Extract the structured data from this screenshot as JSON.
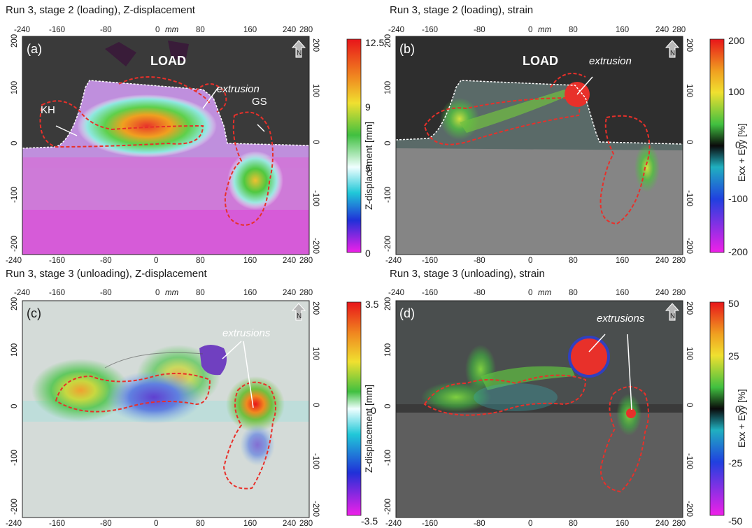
{
  "panels": [
    {
      "id": "a",
      "title": "Run 3, stage 2 (loading), Z-displacement",
      "letter": "(a)",
      "x_ticks_top": [
        "-240",
        "-160",
        "-80",
        "0",
        "mm",
        "80",
        "160",
        "240",
        "280"
      ],
      "x_ticks_bottom": [
        "-240",
        "-160",
        "-80",
        "0",
        "80",
        "160",
        "240",
        "280"
      ],
      "y_ticks_left": [
        "200",
        "100",
        "0",
        "-100",
        "-200"
      ],
      "y_ticks_right": [
        "200",
        "100",
        "0",
        "-100",
        "-200"
      ],
      "annotations": [
        "LOAD",
        "extrusion",
        "KH",
        "GS"
      ],
      "north": "N",
      "colorbar": {
        "ticks": [
          "12.5",
          "9",
          "5",
          "0"
        ],
        "label": "Z-displacement [mm]"
      }
    },
    {
      "id": "b",
      "title": "Run 3, stage 2 (loading), strain",
      "letter": "(b)",
      "x_ticks_top": [
        "-240",
        "-160",
        "-80",
        "0",
        "mm",
        "80",
        "160",
        "240",
        "280"
      ],
      "x_ticks_bottom": [
        "-240",
        "-160",
        "-80",
        "0",
        "80",
        "160",
        "240",
        "280"
      ],
      "y_ticks_left": [
        "200",
        "100",
        "0",
        "-100",
        "-200"
      ],
      "y_ticks_right": [
        "200",
        "100",
        "0",
        "-100",
        "-200"
      ],
      "annotations": [
        "LOAD",
        "extrusion"
      ],
      "north": "N",
      "colorbar": {
        "ticks": [
          "200",
          "100",
          "0",
          "-100",
          "-200"
        ],
        "label": "Exx + Eyy [%]"
      }
    },
    {
      "id": "c",
      "title": "Run 3, stage 3 (unloading), Z-displacement",
      "letter": "(c)",
      "x_ticks_top": [
        "-240",
        "-160",
        "-80",
        "0",
        "mm",
        "80",
        "160",
        "240",
        "280"
      ],
      "x_ticks_bottom": [
        "-240",
        "-160",
        "-80",
        "0",
        "80",
        "160",
        "240",
        "280"
      ],
      "y_ticks_left": [
        "200",
        "100",
        "0",
        "-100",
        "-200"
      ],
      "y_ticks_right": [
        "200",
        "100",
        "0",
        "-100",
        "-200"
      ],
      "annotations": [
        "extrusions"
      ],
      "north": "N",
      "colorbar": {
        "ticks": [
          "3.5",
          "0",
          "-3.5"
        ],
        "label": "Z-displacement [mm]"
      }
    },
    {
      "id": "d",
      "title": "Run 3, stage 3 (unloading), strain",
      "letter": "(d)",
      "x_ticks_top": [
        "-240",
        "-160",
        "-80",
        "0",
        "mm",
        "80",
        "160",
        "240",
        "280"
      ],
      "x_ticks_bottom": [
        "-240",
        "-160",
        "-80",
        "0",
        "80",
        "160",
        "240",
        "280"
      ],
      "y_ticks_left": [
        "200",
        "100",
        "0",
        "-100",
        "-200"
      ],
      "y_ticks_right": [
        "200",
        "100",
        "0",
        "-100",
        "-200"
      ],
      "annotations": [
        "extrusions"
      ],
      "north": "N",
      "colorbar": {
        "ticks": [
          "50",
          "25",
          "0",
          "-25",
          "-50"
        ],
        "label": "Exx + Eyy [%]"
      }
    }
  ],
  "colors": {
    "dashed_outline": "#e8302a",
    "load_surface_line": "#ffffff",
    "background_dark": "#3a3a3a",
    "background_gray": "#7a7a7a",
    "background_light": "#cfd6d4"
  }
}
